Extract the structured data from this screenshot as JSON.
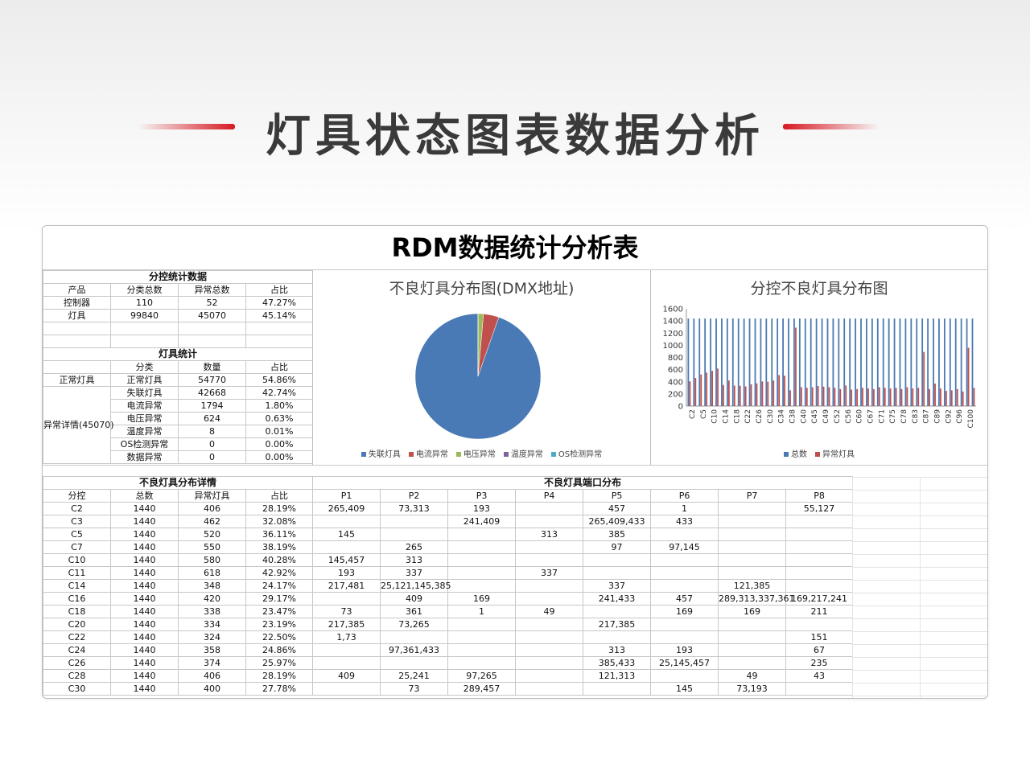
{
  "page": {
    "title": "灯具状态图表数据分析"
  },
  "sheet": {
    "title": "RDM数据统计分析表",
    "control_stats": {
      "heading": "分控统计数据",
      "headers": [
        "产品",
        "分类总数",
        "异常总数",
        "占比"
      ],
      "rows": [
        [
          "控制器",
          "110",
          "52",
          "47.27%"
        ],
        [
          "灯具",
          "99840",
          "45070",
          "45.14%"
        ]
      ]
    },
    "lamp_stats": {
      "heading": "灯具统计",
      "headers": [
        "分类",
        "数量",
        "占比"
      ],
      "normal_label": "正常灯具",
      "abnormal_label": "异常详情(45070)",
      "rows": [
        [
          "正常灯具",
          "54770",
          "54.86%"
        ],
        [
          "失联灯具",
          "42668",
          "42.74%"
        ],
        [
          "电流异常",
          "1794",
          "1.80%"
        ],
        [
          "电压异常",
          "624",
          "0.63%"
        ],
        [
          "温度异常",
          "8",
          "0.01%"
        ],
        [
          "OS检测异常",
          "0",
          "0.00%"
        ],
        [
          "数据异常",
          "0",
          "0.00%"
        ]
      ]
    },
    "detail": {
      "heading": "不良灯具分布详情",
      "port_heading": "不良灯具端口分布",
      "headers": [
        "分控",
        "总数",
        "异常灯具",
        "占比",
        "P1",
        "P2",
        "P3",
        "P4",
        "P5",
        "P6",
        "P7",
        "P8"
      ],
      "rows": [
        [
          "C2",
          "1440",
          "406",
          "28.19%",
          "265,409",
          "73,313",
          "193",
          "",
          "457",
          "1",
          "",
          "55,127"
        ],
        [
          "C3",
          "1440",
          "462",
          "32.08%",
          "",
          "",
          "241,409",
          "",
          "265,409,433",
          "433",
          "",
          ""
        ],
        [
          "C5",
          "1440",
          "520",
          "36.11%",
          "145",
          "",
          "",
          "313",
          "385",
          "",
          "",
          ""
        ],
        [
          "C7",
          "1440",
          "550",
          "38.19%",
          "",
          "265",
          "",
          "",
          "97",
          "97,145",
          "",
          ""
        ],
        [
          "C10",
          "1440",
          "580",
          "40.28%",
          "145,457",
          "313",
          "",
          "",
          "",
          "",
          "",
          ""
        ],
        [
          "C11",
          "1440",
          "618",
          "42.92%",
          "193",
          "337",
          "",
          "337",
          "",
          "",
          "",
          ""
        ],
        [
          "C14",
          "1440",
          "348",
          "24.17%",
          "217,481",
          "25,121,145,385",
          "",
          "",
          "337",
          "",
          "121,385",
          ""
        ],
        [
          "C16",
          "1440",
          "420",
          "29.17%",
          "",
          "409",
          "169",
          "",
          "241,433",
          "457",
          "289,313,337,361",
          "169,217,241"
        ],
        [
          "C18",
          "1440",
          "338",
          "23.47%",
          "73",
          "361",
          "1",
          "49",
          "",
          "169",
          "169",
          "211"
        ],
        [
          "C20",
          "1440",
          "334",
          "23.19%",
          "217,385",
          "73,265",
          "",
          "",
          "217,385",
          "",
          "",
          ""
        ],
        [
          "C22",
          "1440",
          "324",
          "22.50%",
          "1,73",
          "",
          "",
          "",
          "",
          "",
          "",
          "151"
        ],
        [
          "C24",
          "1440",
          "358",
          "24.86%",
          "",
          "97,361,433",
          "",
          "",
          "313",
          "193",
          "",
          "67"
        ],
        [
          "C26",
          "1440",
          "374",
          "25.97%",
          "",
          "",
          "",
          "",
          "385,433",
          "25,145,457",
          "",
          "235"
        ],
        [
          "C28",
          "1440",
          "406",
          "28.19%",
          "409",
          "25,241",
          "97,265",
          "",
          "121,313",
          "",
          "49",
          "43"
        ],
        [
          "C30",
          "1440",
          "400",
          "27.78%",
          "",
          "73",
          "289,457",
          "",
          "",
          "145",
          "73,193",
          ""
        ]
      ]
    }
  },
  "chart_data": [
    {
      "type": "pie",
      "title": "不良灯具分布图(DMX地址)",
      "categories": [
        "失联灯具",
        "电流异常",
        "电压异常",
        "温度异常",
        "OS检测异常"
      ],
      "values": [
        42668,
        1794,
        624,
        8,
        0
      ],
      "colors": [
        "#4a7ab5",
        "#c0504d",
        "#9bbb59",
        "#8064a2",
        "#4bacc6"
      ],
      "legend": "bottom"
    },
    {
      "type": "bar",
      "title": "分控不良灯具分布图",
      "tick_labels": [
        "C2",
        "C5",
        "C10",
        "C14",
        "C18",
        "C22",
        "C26",
        "C30",
        "C34",
        "C38",
        "C40",
        "C45",
        "C49",
        "C52",
        "C56",
        "C60",
        "C67",
        "C71",
        "C75",
        "C78",
        "C83",
        "C87",
        "C89",
        "C92",
        "C96",
        "C100"
      ],
      "ylim": [
        0,
        1600
      ],
      "yticks": [
        "0",
        "200",
        "400",
        "600",
        "800",
        "1000",
        "1200",
        "1400",
        "1600"
      ],
      "series": [
        {
          "name": "总数",
          "color": "#4a7ab5",
          "values": [
            1440,
            1440,
            1440,
            1440,
            1440,
            1440,
            1440,
            1440,
            1440,
            1440,
            1440,
            1440,
            1440,
            1440,
            1440,
            1440,
            1440,
            1440,
            1440,
            1440,
            1440,
            1440,
            1440,
            1440,
            1440,
            1440,
            1440,
            1440,
            1440,
            1440,
            1440,
            1440,
            1440,
            1440,
            1440,
            1440,
            1440,
            1440,
            1440,
            1440,
            1440,
            1440,
            1440,
            1440,
            1440,
            1440,
            1440,
            1440,
            1440,
            1440,
            1440,
            1440
          ]
        },
        {
          "name": "异常灯具",
          "color": "#c0504d",
          "values": [
            406,
            462,
            520,
            550,
            580,
            618,
            348,
            420,
            338,
            334,
            324,
            358,
            374,
            406,
            400,
            420,
            510,
            500,
            260,
            1290,
            310,
            300,
            310,
            330,
            320,
            310,
            300,
            280,
            340,
            270,
            280,
            300,
            290,
            280,
            310,
            300,
            290,
            300,
            280,
            310,
            290,
            300,
            890,
            280,
            370,
            290,
            250,
            260,
            280,
            240,
            960,
            300
          ]
        }
      ],
      "legend": "bottom"
    }
  ]
}
